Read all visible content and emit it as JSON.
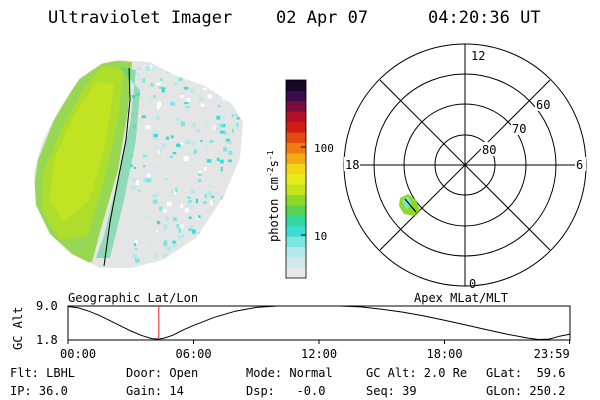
{
  "header": {
    "title": "Ultraviolet Imager",
    "date": "02 Apr 07",
    "time": "04:20:36 UT"
  },
  "colorbar": {
    "label": "photon cm",
    "label_exp": "-2",
    "label_unit": "s",
    "label_unit_exp": "-1",
    "ticks": [
      "100",
      "10"
    ],
    "colors": [
      "#e8e8e8",
      "#cfe8ec",
      "#b4e8ef",
      "#7de6e0",
      "#3cdcd2",
      "#34d89b",
      "#58d255",
      "#8ed826",
      "#c6e21a",
      "#e8ec1c",
      "#f2d616",
      "#f5a815",
      "#ef7a12",
      "#e24a10",
      "#d01c14",
      "#b2102a",
      "#7a0c3c",
      "#3a0a4a",
      "#140826"
    ]
  },
  "panels": {
    "left_label": "Geographic Lat/Lon",
    "right_label": "Apex MLat/MLT"
  },
  "polar": {
    "mlt_labels": [
      "12",
      "6",
      "0",
      "18"
    ],
    "lat_labels": [
      "60",
      "70",
      "80"
    ]
  },
  "info": {
    "filter": "Flt: LBHL",
    "ip": "IP: 36.0",
    "door": "Door: Open",
    "gain": "Gain: 14",
    "mode": "Mode: Normal",
    "dsp": "Dsp:   -0.0",
    "gc_alt": "GC Alt: 2.0 Re",
    "seq": "Seq: 39",
    "glat": "GLat:  59.6",
    "glon": "GLon: 250.2"
  },
  "chart_data": {
    "type": "line",
    "title": "",
    "xlabel": "",
    "ylabel": "GC Alt",
    "x_tick_labels": [
      "00:00",
      "06:00",
      "12:00",
      "18:00",
      "23:59"
    ],
    "y_tick_labels": [
      "9.0",
      "1.8"
    ],
    "xlim": [
      0,
      24
    ],
    "ylim": [
      1.8,
      9.0
    ],
    "current_time_hours": 4.34,
    "series": [
      {
        "x": [
          0.0,
          0.5,
          1.0,
          1.5,
          2.0,
          2.5,
          3.0,
          3.5,
          4.0,
          4.34,
          4.6,
          5.0,
          5.5,
          6.0,
          7.0,
          8.0,
          9.0,
          10.0,
          11.0,
          12.0,
          13.0,
          14.0,
          15.0,
          16.0,
          17.0,
          18.0,
          19.0,
          20.0,
          21.0,
          22.0,
          22.5,
          23.0,
          23.5,
          23.98
        ],
        "y": [
          8.9,
          8.6,
          7.9,
          7.0,
          5.9,
          4.8,
          3.7,
          2.8,
          2.1,
          2.0,
          2.2,
          2.8,
          3.9,
          4.9,
          6.6,
          7.9,
          8.7,
          9.1,
          9.2,
          9.2,
          9.1,
          8.8,
          8.3,
          7.7,
          6.9,
          6.0,
          5.0,
          4.0,
          3.0,
          2.2,
          1.9,
          2.0,
          2.6,
          3.0
        ]
      }
    ]
  }
}
